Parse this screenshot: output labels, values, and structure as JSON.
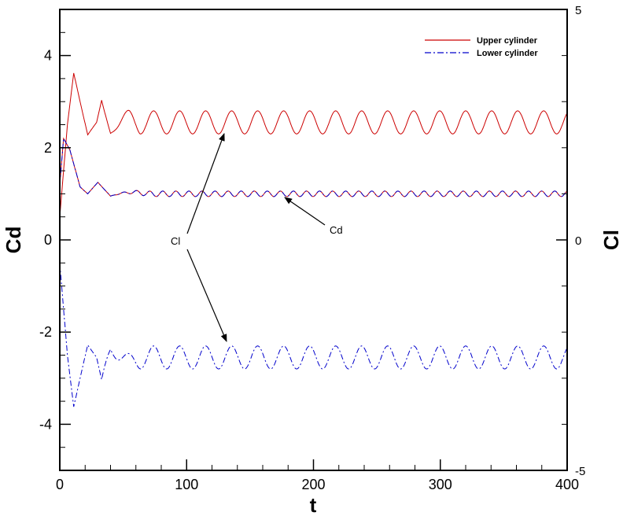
{
  "chart_data": {
    "type": "line",
    "xlabel": "t",
    "ylabel_left": "Cd",
    "ylabel_right": "Cl",
    "xlim": [
      0,
      400
    ],
    "ylim_left": [
      -5,
      5
    ],
    "ylim_right": [
      -5,
      5
    ],
    "x_ticks": [
      "0",
      "100",
      "200",
      "300",
      "400"
    ],
    "y_left_ticks": [
      "4",
      "2",
      "0",
      "-2",
      "-4"
    ],
    "y_right_ticks": [
      "5",
      "0",
      "-5"
    ],
    "grid": false,
    "legend_position": "top-right",
    "series": [
      {
        "name": "Upper cylinder",
        "color": "#cc0000",
        "line_style": "solid",
        "curves": [
          {
            "quantity": "Cl",
            "x": [
              0,
              6,
              11,
              16,
              22,
              29,
              33,
              40,
              55,
              100,
              200,
              300,
              400
            ],
            "y": [
              0.5,
              2.5,
              3.62,
              3.0,
              2.28,
              2.55,
              3.03,
              2.28,
              2.88,
              2.85,
              2.8,
              2.8,
              2.75
            ],
            "mean": 2.55,
            "amplitude": 0.25,
            "period": 20.5
          },
          {
            "quantity": "Cd",
            "x": [
              0,
              3,
              8,
              16,
              22,
              30,
              40,
              60,
              100,
              200,
              300,
              400
            ],
            "y": [
              1.2,
              2.2,
              1.95,
              1.15,
              1.0,
              1.25,
              0.95,
              1.1,
              1.08,
              1.05,
              1.02,
              1.03
            ],
            "mean": 1.0,
            "amplitude": 0.06,
            "period": 10.3
          }
        ]
      },
      {
        "name": "Lower cylinder",
        "color": "#0000cc",
        "line_style": "dash-dot",
        "curves": [
          {
            "quantity": "Cl",
            "x": [
              0,
              6,
              11,
              16,
              22,
              29,
              33,
              40,
              55,
              100,
              200,
              300,
              400
            ],
            "y": [
              -0.5,
              -2.5,
              -3.62,
              -3.0,
              -2.28,
              -2.55,
              -3.03,
              -2.28,
              -2.88,
              -2.85,
              -2.8,
              -2.8,
              -2.75
            ],
            "mean": -2.55,
            "amplitude": 0.25,
            "period": 20.5
          },
          {
            "quantity": "Cd",
            "x": [
              0,
              3,
              8,
              16,
              22,
              30,
              40,
              60,
              100,
              200,
              300,
              400
            ],
            "y": [
              1.2,
              2.2,
              1.95,
              1.15,
              1.0,
              1.25,
              0.95,
              1.1,
              1.08,
              1.05,
              1.02,
              1.03
            ],
            "mean": 1.0,
            "amplitude": 0.06,
            "period": 10.3
          }
        ]
      }
    ],
    "annotations": [
      {
        "text": "Cl",
        "points_to": [
          "Upper cylinder Cl at t≈130",
          "Lower cylinder Cl at t≈130"
        ]
      },
      {
        "text": "Cd",
        "points_to": [
          "Cd curves at t≈175"
        ]
      }
    ]
  }
}
